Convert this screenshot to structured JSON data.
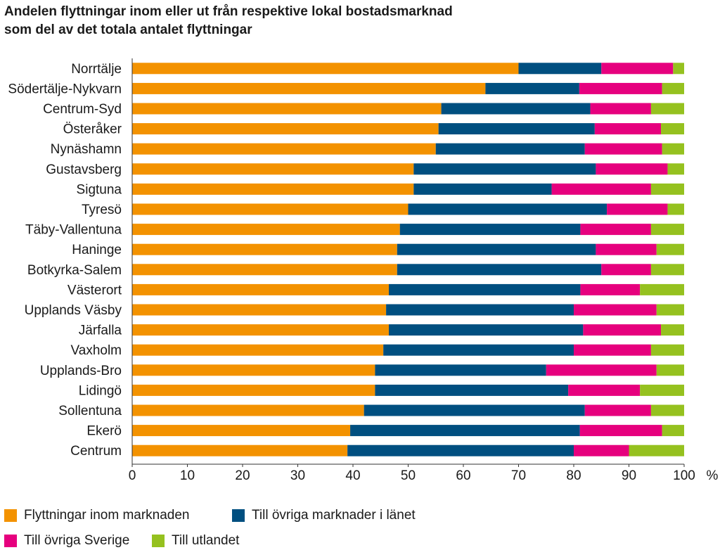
{
  "chart_data": {
    "type": "bar",
    "orientation": "horizontal",
    "stacked": true,
    "title_lines": [
      "Andelen flyttningar inom eller ut från respektive lokal bostadsmarknad",
      "som del av det totala antalet flyttningar"
    ],
    "xlabel": "%",
    "xlim": [
      0,
      100
    ],
    "xticks": [
      0,
      10,
      20,
      30,
      40,
      50,
      60,
      70,
      80,
      90,
      100
    ],
    "categories": [
      "Norrtälje",
      "Södertälje-Nykvarn",
      "Centrum-Syd",
      "Österåker",
      "Nynäshamn",
      "Gustavsberg",
      "Sigtuna",
      "Tyresö",
      "Täby-Vallentuna",
      "Haninge",
      "Botkyrka-Salem",
      "Västerort",
      "Upplands Väsby",
      "Järfalla",
      "Vaxholm",
      "Upplands-Bro",
      "Lidingö",
      "Sollentuna",
      "Ekerö",
      "Centrum"
    ],
    "series": [
      {
        "name": "Flyttningar inom marknaden",
        "color": "#f39200",
        "values": [
          70,
          64,
          56,
          55.5,
          55,
          51,
          51,
          50,
          48.5,
          48,
          48,
          46.5,
          46,
          46.5,
          45.5,
          44,
          44,
          42,
          39.5,
          39
        ]
      },
      {
        "name": "Till övriga marknader i länet",
        "color": "#004f80",
        "values": [
          15,
          17,
          27,
          28.3,
          27,
          33,
          25,
          36,
          32.7,
          36,
          37,
          34.7,
          34,
          35.2,
          34.5,
          31,
          35,
          40,
          41.6,
          41
        ]
      },
      {
        "name": "Till övriga Sverige",
        "color": "#e6007e",
        "values": [
          13,
          15,
          11,
          12,
          14,
          13,
          18,
          11,
          12.8,
          11,
          9,
          10.8,
          15,
          14.1,
          14,
          20,
          13,
          12,
          14.9,
          10
        ]
      },
      {
        "name": "Till utlandet",
        "color": "#95c11f",
        "values": [
          2,
          4,
          6,
          4.2,
          4,
          3,
          6,
          3,
          6,
          5,
          6,
          8,
          5,
          4.2,
          6,
          5,
          8,
          6,
          4,
          10
        ]
      }
    ],
    "legend_position": "bottom"
  }
}
